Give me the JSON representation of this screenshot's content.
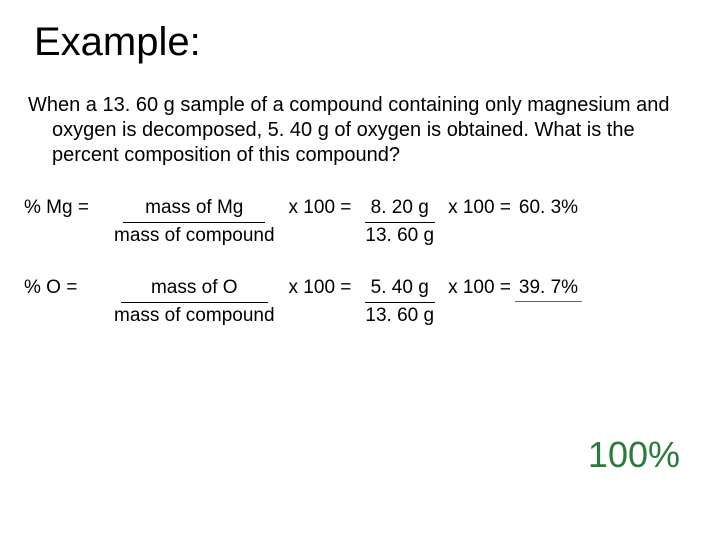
{
  "colors": {
    "background": "#ffffff",
    "text": "#000000",
    "total": "#2d7a3a",
    "underline": "#5b6770"
  },
  "fonts": {
    "family": "Verdana",
    "title_size_pt": 40,
    "body_size_pt": 20,
    "eq_size_pt": 19,
    "total_size_pt": 36
  },
  "title": "Example:",
  "problem": "When a 13. 60 g sample of a compound containing only magnesium and oxygen is decomposed, 5. 40 g of oxygen is obtained.  What is the percent composition of this compound?",
  "mg": {
    "label": "% Mg  =",
    "frac1_num": "mass of Mg",
    "frac1_den": "mass of compound",
    "times1": "x  100  =",
    "frac2_num": "8. 20 g",
    "frac2_den": "13. 60 g",
    "times2": "x  100  =",
    "result": "60. 3%"
  },
  "o": {
    "label": "% O  =",
    "frac1_num": "mass of O",
    "frac1_den": "mass of compound",
    "times1": "x  100  =",
    "frac2_num": "5. 40 g",
    "frac2_den": "13. 60 g",
    "times2": "x  100  =",
    "result": "39. 7%"
  },
  "total": "100%"
}
